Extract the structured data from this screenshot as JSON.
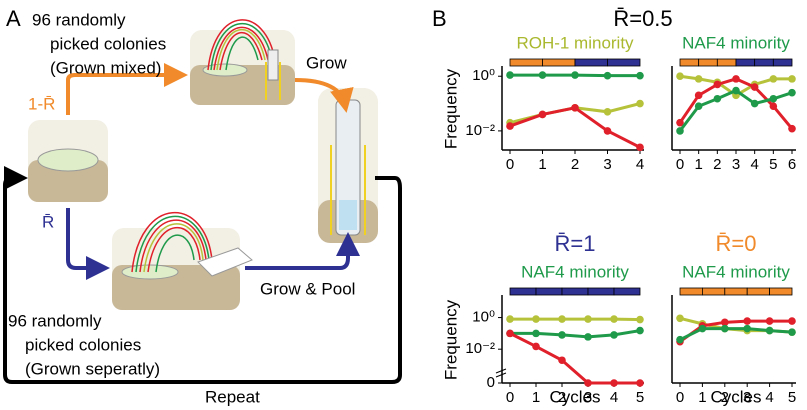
{
  "panel_a": {
    "label": "A",
    "top_text": [
      "96 randomly",
      "picked colonies",
      "(Grown mixed)"
    ],
    "mixed_fraction": "1-R̄",
    "grow": "Grow",
    "separate_fraction": "R̄",
    "grow_pool": "Grow & Pool",
    "bottom_text": [
      "96 randomly",
      "picked colonies",
      "(Grown seperatly)"
    ],
    "repeat": "Repeat"
  },
  "panel_b": {
    "label": "B",
    "title": "R̄=0.5"
  },
  "chart_data": [
    {
      "type": "line",
      "title": "ROH-1 minority",
      "title_color": "#a9b82e",
      "ylabel": "Frequency",
      "log_y": true,
      "x": [
        0,
        1,
        2,
        3,
        4
      ],
      "xlim": [
        0,
        4
      ],
      "xticks": [
        0,
        1,
        2,
        3,
        4
      ],
      "ylim": [
        0.002,
        2
      ],
      "yticks": [
        {
          "value": 1,
          "label": "10⁰"
        },
        {
          "value": 0.01,
          "label": "10⁻²"
        }
      ],
      "regime_colors": [
        "#f08a2a",
        "#f08a2a",
        "#2e3192",
        "#2e3192"
      ],
      "series": [
        {
          "color": "#1e9a4a",
          "values": [
            1.1,
            1.1,
            1.1,
            1.05,
            1.05
          ]
        },
        {
          "color": "#b5c23a",
          "values": [
            0.02,
            0.04,
            0.07,
            0.05,
            0.1
          ]
        },
        {
          "color": "#e0202a",
          "values": [
            0.015,
            0.04,
            0.07,
            0.01,
            0.0025
          ]
        }
      ]
    },
    {
      "type": "line",
      "title": "NAF4 minority",
      "title_color": "#1e9a4a",
      "log_y": true,
      "x": [
        0,
        1,
        2,
        3,
        4,
        5,
        6
      ],
      "xlim": [
        0,
        6
      ],
      "xticks": [
        0,
        1,
        2,
        3,
        4,
        5,
        6
      ],
      "ylim": [
        0.002,
        2
      ],
      "regime_colors": [
        "#f08a2a",
        "#f08a2a",
        "#f08a2a",
        "#2e3192",
        "#2e3192",
        "#2e3192"
      ],
      "series": [
        {
          "color": "#b5c23a",
          "values": [
            1,
            0.8,
            0.6,
            0.2,
            0.5,
            0.8,
            0.8
          ]
        },
        {
          "color": "#e0202a",
          "values": [
            0.02,
            0.2,
            0.5,
            0.8,
            0.4,
            0.08,
            0.012
          ]
        },
        {
          "color": "#1e9a4a",
          "values": [
            0.01,
            0.08,
            0.15,
            0.3,
            0.1,
            0.15,
            0.25
          ]
        }
      ]
    },
    {
      "type": "line",
      "header": "R̄=1",
      "header_color": "#2e3192",
      "title": "NAF4 minority",
      "title_color": "#1e9a4a",
      "ylabel": "Frequency",
      "xlabel": "Cycles",
      "log_y": true,
      "x": [
        0,
        1,
        2,
        3,
        4,
        5
      ],
      "xlim": [
        0,
        5
      ],
      "xticks": [
        0,
        1,
        2,
        3,
        4,
        5
      ],
      "ylim": [
        0.001,
        20
      ],
      "yticks": [
        {
          "value": 1,
          "label": "10⁰"
        },
        {
          "value": 0.01,
          "label": "10⁻²"
        },
        0
      ],
      "regime_colors": [
        "#2e3192",
        "#2e3192",
        "#2e3192",
        "#2e3192",
        "#2e3192"
      ],
      "series": [
        {
          "color": "#b5c23a",
          "values": [
            0.8,
            0.8,
            0.8,
            0.8,
            0.8,
            0.75
          ]
        },
        {
          "color": "#1e9a4a",
          "values": [
            0.1,
            0.1,
            0.08,
            0.06,
            0.08,
            0.15
          ]
        },
        {
          "color": "#e0202a",
          "values": [
            0.1,
            0.015,
            0.002,
            0,
            0,
            0
          ]
        }
      ]
    },
    {
      "type": "line",
      "header": "R̄=0",
      "header_color": "#f08a2a",
      "title": "NAF4 minority",
      "title_color": "#1e9a4a",
      "xlabel": "Cycles",
      "log_y": true,
      "x": [
        0,
        1,
        2,
        3,
        4,
        5
      ],
      "xlim": [
        0,
        5
      ],
      "xticks": [
        0,
        1,
        2,
        3,
        4,
        5
      ],
      "ylim": [
        0.001,
        20
      ],
      "regime_colors": [
        "#f08a2a",
        "#f08a2a",
        "#f08a2a",
        "#f08a2a",
        "#f08a2a"
      ],
      "series": [
        {
          "color": "#b5c23a",
          "values": [
            0.9,
            0.4,
            0.2,
            0.15,
            0.15,
            0.12
          ]
        },
        {
          "color": "#e0202a",
          "values": [
            0.03,
            0.3,
            0.5,
            0.6,
            0.6,
            0.6
          ]
        },
        {
          "color": "#1e9a4a",
          "values": [
            0.04,
            0.2,
            0.2,
            0.2,
            0.15,
            0.12
          ]
        }
      ]
    }
  ]
}
